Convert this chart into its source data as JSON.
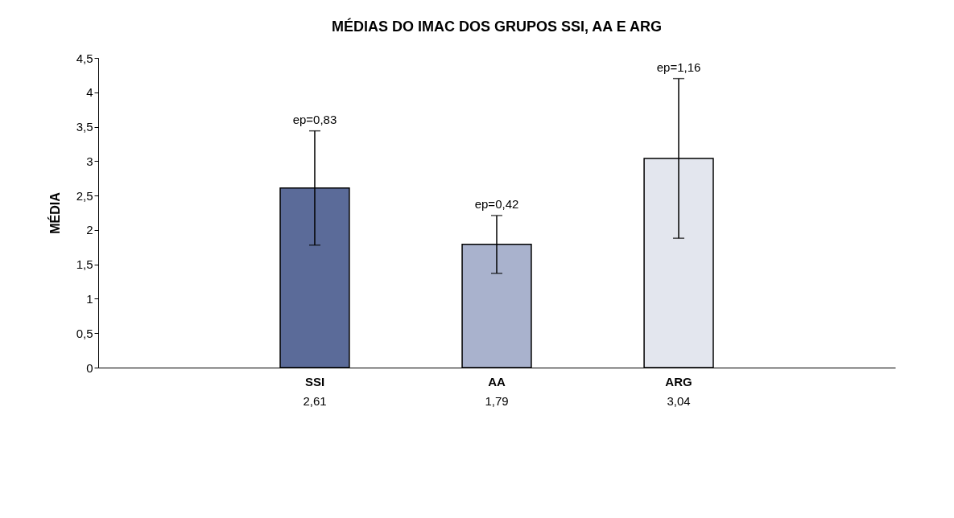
{
  "chart_data": {
    "type": "bar",
    "title": "MÉDIAS DO IMAC DOS GRUPOS SSI, AA E ARG",
    "ylabel": "MÉDIA",
    "categories": [
      "SSI",
      "AA",
      "ARG"
    ],
    "values": [
      2.61,
      1.79,
      3.04
    ],
    "colors": [
      "#5b6b99",
      "#a9b2cd",
      "#e3e6ee"
    ],
    "errors": [
      0.83,
      0.42,
      1.16
    ],
    "value_labels": [
      "2,61",
      "1,79",
      "3,04"
    ],
    "annotations": [
      {
        "text": "ep=0,83",
        "x": "SSI",
        "y": 3.44
      },
      {
        "text": "ep=0,42",
        "x": "AA",
        "y": 2.21
      },
      {
        "text": "ep=1,16",
        "x": "ARG",
        "y": 4.2
      }
    ],
    "ylim": [
      0,
      4.5
    ],
    "yticks": [
      0,
      {
        "value": 0.5,
        "label": "0,5"
      },
      1,
      {
        "value": 1.5,
        "label": "1,5"
      },
      2,
      {
        "value": 2.5,
        "label": "2,5"
      },
      3,
      {
        "value": 3.5,
        "label": "3,5"
      },
      4,
      {
        "value": 4.5,
        "label": "4,5"
      }
    ],
    "grid": false
  }
}
